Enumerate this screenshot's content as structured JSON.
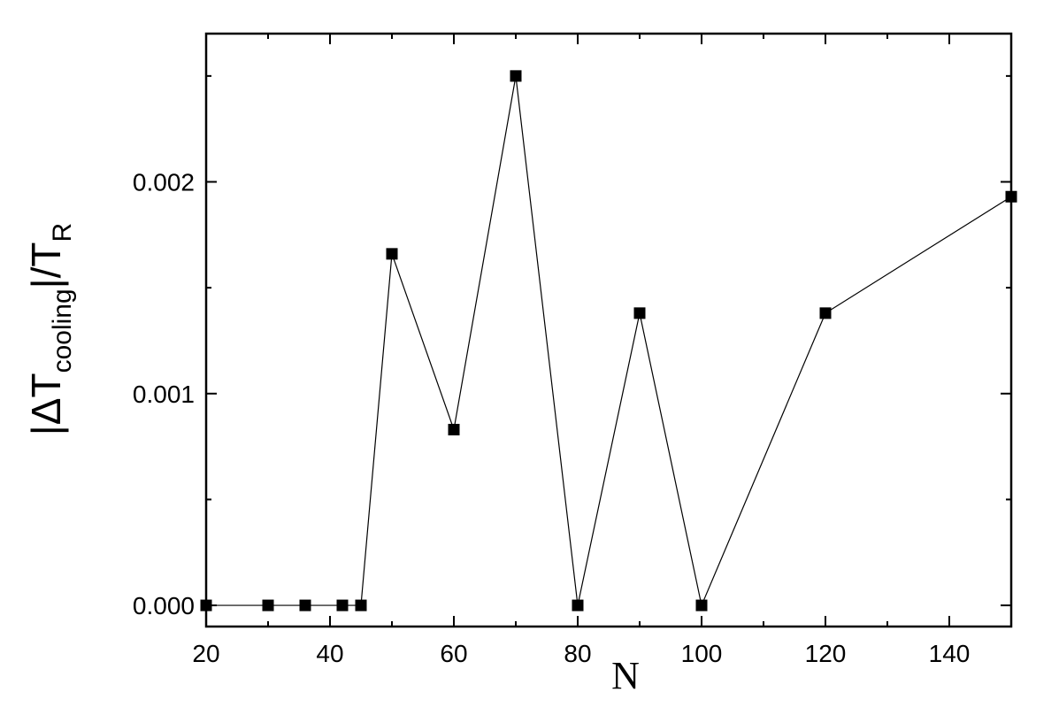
{
  "chart_data": {
    "type": "line",
    "x": [
      20,
      30,
      36,
      42,
      45,
      50,
      60,
      70,
      80,
      90,
      100,
      120,
      150
    ],
    "series": [
      {
        "values": [
          0.0,
          0.0,
          0.0,
          0.0,
          0.0,
          0.00166,
          0.00083,
          0.0025,
          0.0,
          0.00138,
          0.0,
          0.00138,
          0.00193
        ],
        "marker": "square",
        "color": "#000000"
      }
    ],
    "xlim": [
      20,
      150
    ],
    "ylim": [
      -0.0001,
      0.0027
    ],
    "x_ticks": [
      "20",
      "40",
      "60",
      "80",
      "100",
      "120",
      "140"
    ],
    "x_tick_values": [
      20,
      40,
      60,
      80,
      100,
      120,
      140
    ],
    "y_ticks": [
      "0.000",
      "0.001",
      "0.002"
    ],
    "y_tick_values": [
      0.0,
      0.001,
      0.002
    ],
    "xlabel": "N",
    "ylabel": {
      "bar_open": "|",
      "delta": "Δ",
      "t": "T",
      "sub_cooling": "cooling",
      "bar_close": "|",
      "slash_t": "/T",
      "sub_r": "R"
    },
    "grid": false,
    "legend": "none"
  }
}
